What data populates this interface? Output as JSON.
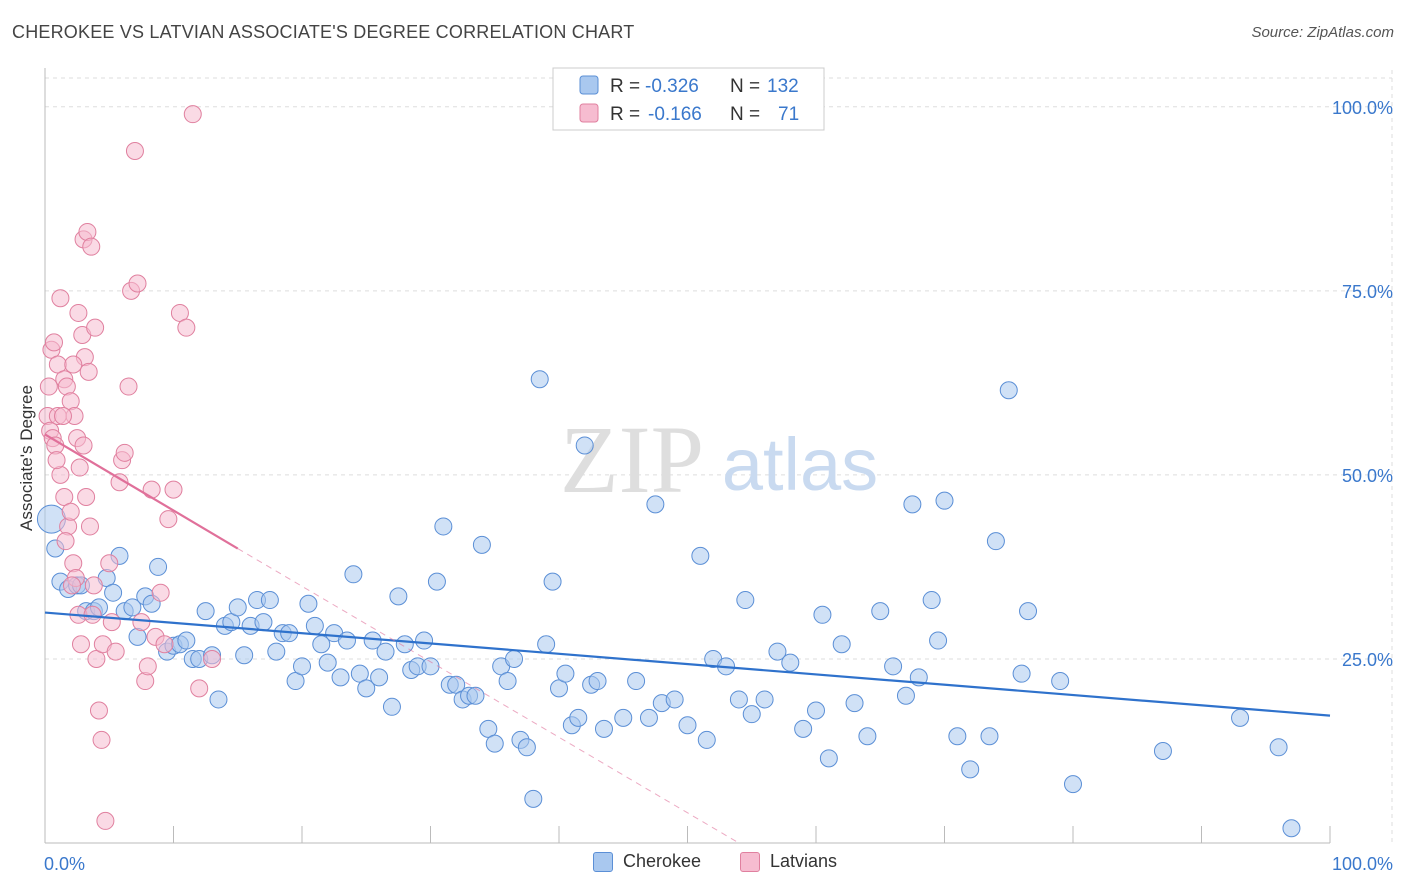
{
  "title": "CHEROKEE VS LATVIAN ASSOCIATE'S DEGREE CORRELATION CHART",
  "source": "Source: ZipAtlas.com",
  "watermark": {
    "zip": "ZIP",
    "atlas": "atlas"
  },
  "colors": {
    "cherokee_fill": "#a9c8ef",
    "cherokee_stroke": "#5b8fd6",
    "cherokee_line": "#2f72cc",
    "latvian_fill": "#f6bcd0",
    "latvian_stroke": "#e0809f",
    "latvian_line": "#e0709a",
    "axis_text": "#3a78cc",
    "grid": "#dddddd"
  },
  "legend": {
    "rows": [
      {
        "r_label": "R =",
        "r_value": "-0.326",
        "n_label": "N =",
        "n_value": "132"
      },
      {
        "r_label": "R =",
        "r_value": "-0.166",
        "n_label": "N =",
        "n_value": "71"
      }
    ]
  },
  "bottom_legend": {
    "cherokee": "Cherokee",
    "latvians": "Latvians"
  },
  "chart_data": {
    "type": "scatter",
    "ylabel": "Associate's Degree",
    "xlim": [
      0,
      100
    ],
    "ylim": [
      0,
      105
    ],
    "x_tick_labels": [
      "0.0%",
      "100.0%"
    ],
    "y_tick_labels": [
      "25.0%",
      "50.0%",
      "75.0%",
      "100.0%"
    ],
    "y_tick_values": [
      25,
      50,
      75,
      100
    ],
    "grid": true,
    "legend_position": "top-center",
    "series": [
      {
        "name": "Cherokee",
        "points": [
          [
            0.5,
            44
          ],
          [
            0.8,
            40
          ],
          [
            1.2,
            35.5
          ],
          [
            1.8,
            34.5
          ],
          [
            2.5,
            35
          ],
          [
            2.8,
            35
          ],
          [
            3.2,
            31.5
          ],
          [
            3.8,
            31.5
          ],
          [
            4.2,
            32
          ],
          [
            4.8,
            36
          ],
          [
            5.3,
            34
          ],
          [
            5.8,
            39
          ],
          [
            6.2,
            31.5
          ],
          [
            6.8,
            32
          ],
          [
            7.2,
            28
          ],
          [
            7.8,
            33.5
          ],
          [
            8.3,
            32.5
          ],
          [
            8.8,
            37.5
          ],
          [
            9.5,
            26
          ],
          [
            10,
            26.8
          ],
          [
            10.5,
            27
          ],
          [
            11,
            27.5
          ],
          [
            11.5,
            25
          ],
          [
            12,
            25
          ],
          [
            12.5,
            31.5
          ],
          [
            13,
            25.5
          ],
          [
            13.5,
            19.5
          ],
          [
            14,
            29.5
          ],
          [
            14.5,
            30
          ],
          [
            15,
            32
          ],
          [
            15.5,
            25.5
          ],
          [
            16,
            29.5
          ],
          [
            16.5,
            33
          ],
          [
            17,
            30
          ],
          [
            17.5,
            33
          ],
          [
            18,
            26
          ],
          [
            18.5,
            28.5
          ],
          [
            19,
            28.5
          ],
          [
            19.5,
            22
          ],
          [
            20,
            24
          ],
          [
            20.5,
            32.5
          ],
          [
            21,
            29.5
          ],
          [
            21.5,
            27
          ],
          [
            22,
            24.5
          ],
          [
            22.5,
            28.5
          ],
          [
            23,
            22.5
          ],
          [
            23.5,
            27.5
          ],
          [
            24,
            36.5
          ],
          [
            24.5,
            23
          ],
          [
            25,
            21
          ],
          [
            25.5,
            27.5
          ],
          [
            26,
            22.5
          ],
          [
            26.5,
            26
          ],
          [
            27,
            18.5
          ],
          [
            27.5,
            33.5
          ],
          [
            28,
            27
          ],
          [
            28.5,
            23.5
          ],
          [
            29,
            24
          ],
          [
            29.5,
            27.5
          ],
          [
            30,
            24
          ],
          [
            30.5,
            35.5
          ],
          [
            31,
            43
          ],
          [
            31.5,
            21.5
          ],
          [
            32,
            21.5
          ],
          [
            32.5,
            19.5
          ],
          [
            33,
            20
          ],
          [
            33.5,
            20
          ],
          [
            34,
            40.5
          ],
          [
            34.5,
            15.5
          ],
          [
            35,
            13.5
          ],
          [
            35.5,
            24
          ],
          [
            36,
            22
          ],
          [
            36.5,
            25
          ],
          [
            37,
            14
          ],
          [
            37.5,
            13
          ],
          [
            38,
            6
          ],
          [
            38.5,
            63
          ],
          [
            39,
            27
          ],
          [
            39.5,
            35.5
          ],
          [
            40,
            21
          ],
          [
            40.5,
            23
          ],
          [
            41,
            16
          ],
          [
            41.5,
            17
          ],
          [
            42,
            54
          ],
          [
            42.5,
            21.5
          ],
          [
            43,
            22
          ],
          [
            43.5,
            15.5
          ],
          [
            45,
            17
          ],
          [
            46,
            22
          ],
          [
            47,
            17
          ],
          [
            47.5,
            46
          ],
          [
            48,
            19
          ],
          [
            49,
            19.5
          ],
          [
            50,
            16
          ],
          [
            51,
            39
          ],
          [
            51.5,
            14
          ],
          [
            52,
            25
          ],
          [
            53,
            24
          ],
          [
            54,
            19.5
          ],
          [
            54.5,
            33
          ],
          [
            55,
            17.5
          ],
          [
            56,
            19.5
          ],
          [
            57,
            26
          ],
          [
            58,
            24.5
          ],
          [
            59,
            15.5
          ],
          [
            60,
            18
          ],
          [
            60.5,
            31
          ],
          [
            61,
            11.5
          ],
          [
            62,
            27
          ],
          [
            63,
            19
          ],
          [
            64,
            14.5
          ],
          [
            65,
            31.5
          ],
          [
            66,
            24
          ],
          [
            67,
            20
          ],
          [
            67.5,
            46
          ],
          [
            68,
            22.5
          ],
          [
            69,
            33
          ],
          [
            69.5,
            27.5
          ],
          [
            70,
            46.5
          ],
          [
            71,
            14.5
          ],
          [
            72,
            10
          ],
          [
            73.5,
            14.5
          ],
          [
            74,
            41
          ],
          [
            75,
            61.5
          ],
          [
            76,
            23
          ],
          [
            76.5,
            31.5
          ],
          [
            79,
            22
          ],
          [
            80,
            8
          ],
          [
            87,
            12.5
          ],
          [
            93,
            17
          ],
          [
            96,
            13
          ],
          [
            97,
            2
          ]
        ]
      },
      {
        "name": "Latvians",
        "points": [
          [
            0.2,
            58
          ],
          [
            0.4,
            56
          ],
          [
            0.6,
            55
          ],
          [
            0.8,
            54
          ],
          [
            1,
            58
          ],
          [
            1.2,
            50
          ],
          [
            1.5,
            47
          ],
          [
            1.8,
            43
          ],
          [
            2,
            45
          ],
          [
            2.2,
            38
          ],
          [
            2.4,
            36
          ],
          [
            2.6,
            31
          ],
          [
            2.8,
            27
          ],
          [
            0.3,
            62
          ],
          [
            0.5,
            67
          ],
          [
            0.7,
            68
          ],
          [
            1,
            65
          ],
          [
            1.2,
            74
          ],
          [
            1.5,
            63
          ],
          [
            1.7,
            62
          ],
          [
            2,
            60
          ],
          [
            2.3,
            58
          ],
          [
            2.5,
            55
          ],
          [
            2.7,
            51
          ],
          [
            3,
            54
          ],
          [
            3.2,
            47
          ],
          [
            3.5,
            43
          ],
          [
            3.8,
            35
          ],
          [
            4,
            25
          ],
          [
            4.2,
            18
          ],
          [
            4.4,
            14
          ],
          [
            4.5,
            27
          ],
          [
            4.7,
            3
          ],
          [
            5,
            38
          ],
          [
            5.2,
            30
          ],
          [
            5.5,
            26
          ],
          [
            5.8,
            49
          ],
          [
            6,
            52
          ],
          [
            6.2,
            53
          ],
          [
            6.5,
            62
          ],
          [
            6.7,
            75
          ],
          [
            7,
            94
          ],
          [
            7.2,
            76
          ],
          [
            7.5,
            30
          ],
          [
            7.8,
            22
          ],
          [
            8,
            24
          ],
          [
            8.3,
            48
          ],
          [
            8.6,
            28
          ],
          [
            9,
            34
          ],
          [
            9.3,
            27
          ],
          [
            9.6,
            44
          ],
          [
            10,
            48
          ],
          [
            10.5,
            72
          ],
          [
            11,
            70
          ],
          [
            11.5,
            99
          ],
          [
            12,
            21
          ],
          [
            13,
            25
          ],
          [
            3,
            82
          ],
          [
            3.3,
            83
          ],
          [
            3.6,
            81
          ],
          [
            2.6,
            72
          ],
          [
            2.9,
            69
          ],
          [
            3.1,
            66
          ],
          [
            3.4,
            64
          ],
          [
            3.9,
            70
          ],
          [
            2.2,
            65
          ],
          [
            1.4,
            58
          ],
          [
            0.9,
            52
          ],
          [
            1.6,
            41
          ],
          [
            2.1,
            35
          ],
          [
            3.7,
            31
          ]
        ]
      }
    ],
    "trend_lines": [
      {
        "series": "Cherokee",
        "x0": 0,
        "y0": 31.3,
        "x1": 100,
        "y1": 17.3,
        "style": "solid"
      },
      {
        "series": "Latvians",
        "x0": 0,
        "y0": 55.5,
        "x1": 15,
        "y1": 40,
        "style": "solid"
      },
      {
        "series": "Latvians",
        "x0": 15,
        "y0": 40,
        "x1": 54,
        "y1": 0,
        "style": "dashed"
      }
    ]
  }
}
